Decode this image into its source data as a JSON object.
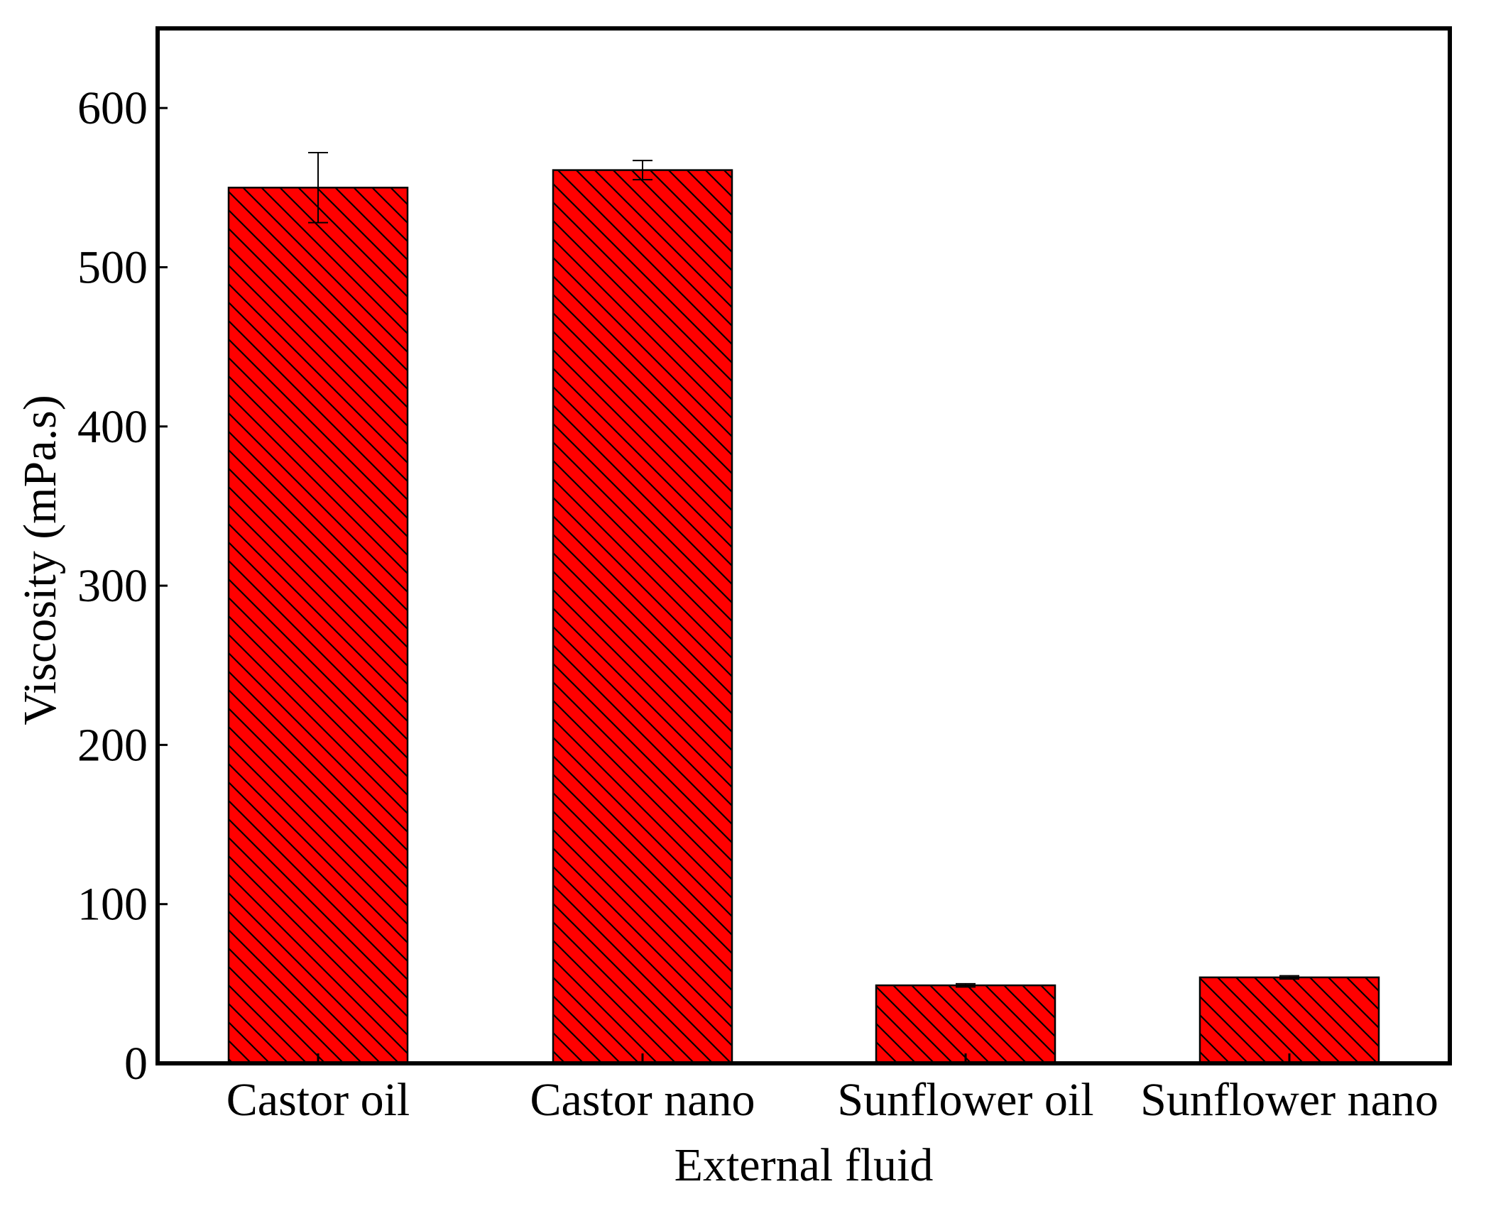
{
  "chart_data": {
    "type": "bar",
    "title": "",
    "xlabel": "External fluid",
    "ylabel": "Viscosity (mPa.s)",
    "categories": [
      "Castor oil",
      "Castor nano",
      "Sunflower oil",
      "Sunflower nano"
    ],
    "series": [
      {
        "values": [
          550,
          561,
          49,
          54
        ],
        "error": [
          22,
          6,
          1,
          1
        ]
      }
    ],
    "ylim": [
      0,
      650
    ],
    "yticks": [
      0,
      100,
      200,
      300,
      400,
      500,
      600
    ],
    "grid": false,
    "legend": "none",
    "bar_pattern": "diagonal-hatch",
    "colors": {
      "bar_fill": "#ff0000",
      "hatch": "#000000",
      "axis": "#000000"
    }
  }
}
